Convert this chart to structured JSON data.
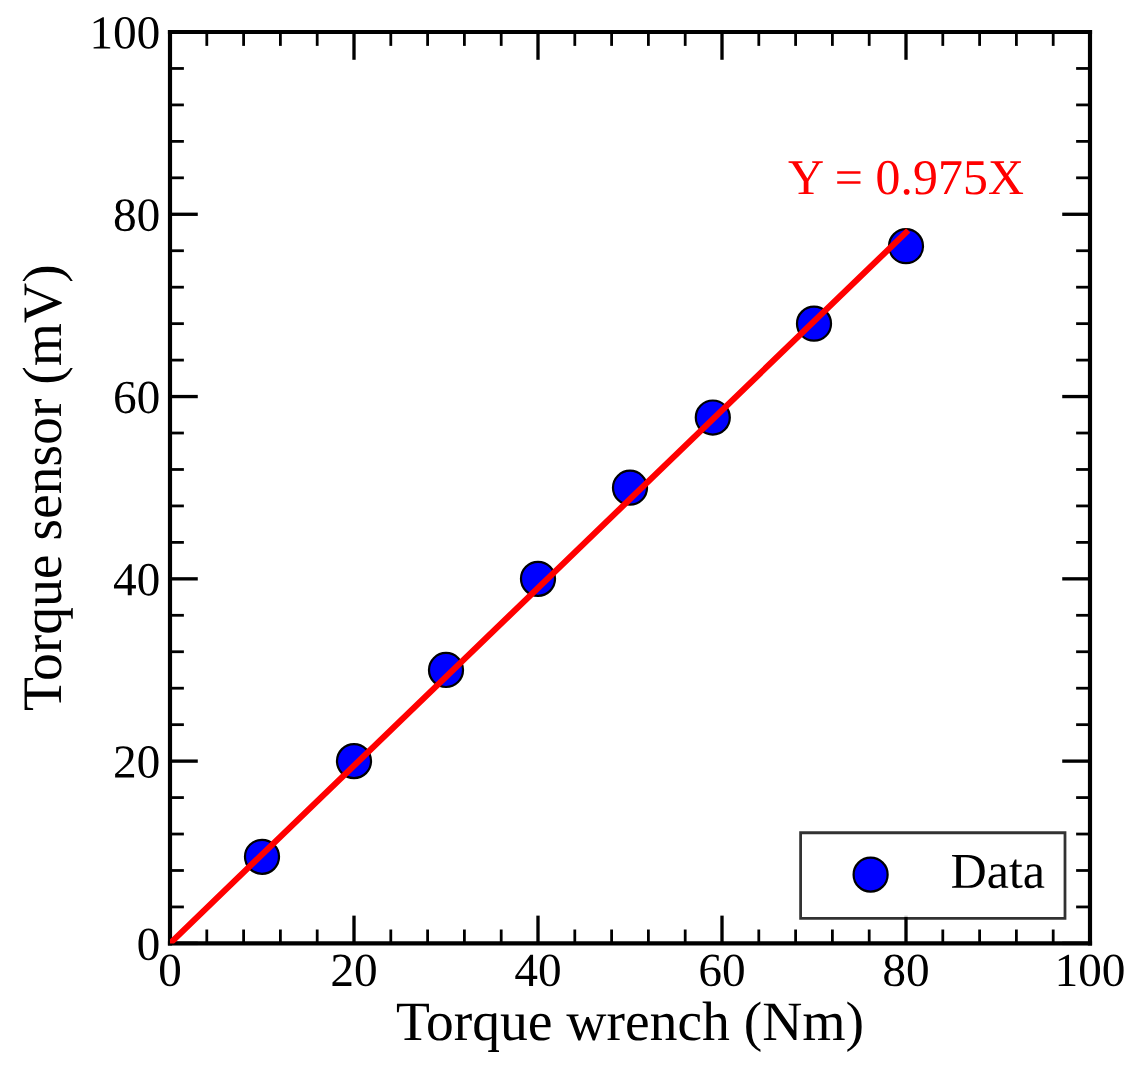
{
  "chart_data": {
    "type": "scatter",
    "xlabel": "Torque wrench (Nm)",
    "ylabel": "Torque sensor (mV)",
    "xlim": [
      0,
      100
    ],
    "ylim": [
      0,
      100
    ],
    "xticks": [
      0,
      20,
      40,
      60,
      80,
      100
    ],
    "yticks": [
      0,
      20,
      40,
      60,
      80,
      100
    ],
    "grid": false,
    "legend": "bottom right",
    "annotations": [
      {
        "text": "Y = 0.975X",
        "x": 80,
        "y": 78
      }
    ],
    "series": [
      {
        "name": "Data",
        "color": "#0000ff",
        "marker": "circle",
        "x": [
          10,
          20,
          30,
          40,
          50,
          59,
          70,
          80
        ],
        "values": [
          9.5,
          20,
          30,
          40,
          50,
          57.7,
          68,
          76.5
        ]
      },
      {
        "type": "line",
        "color": "#ff0000",
        "marker": "none",
        "x": [
          0,
          80
        ],
        "values": [
          0,
          78
        ],
        "line_style": "solid"
      }
    ]
  }
}
